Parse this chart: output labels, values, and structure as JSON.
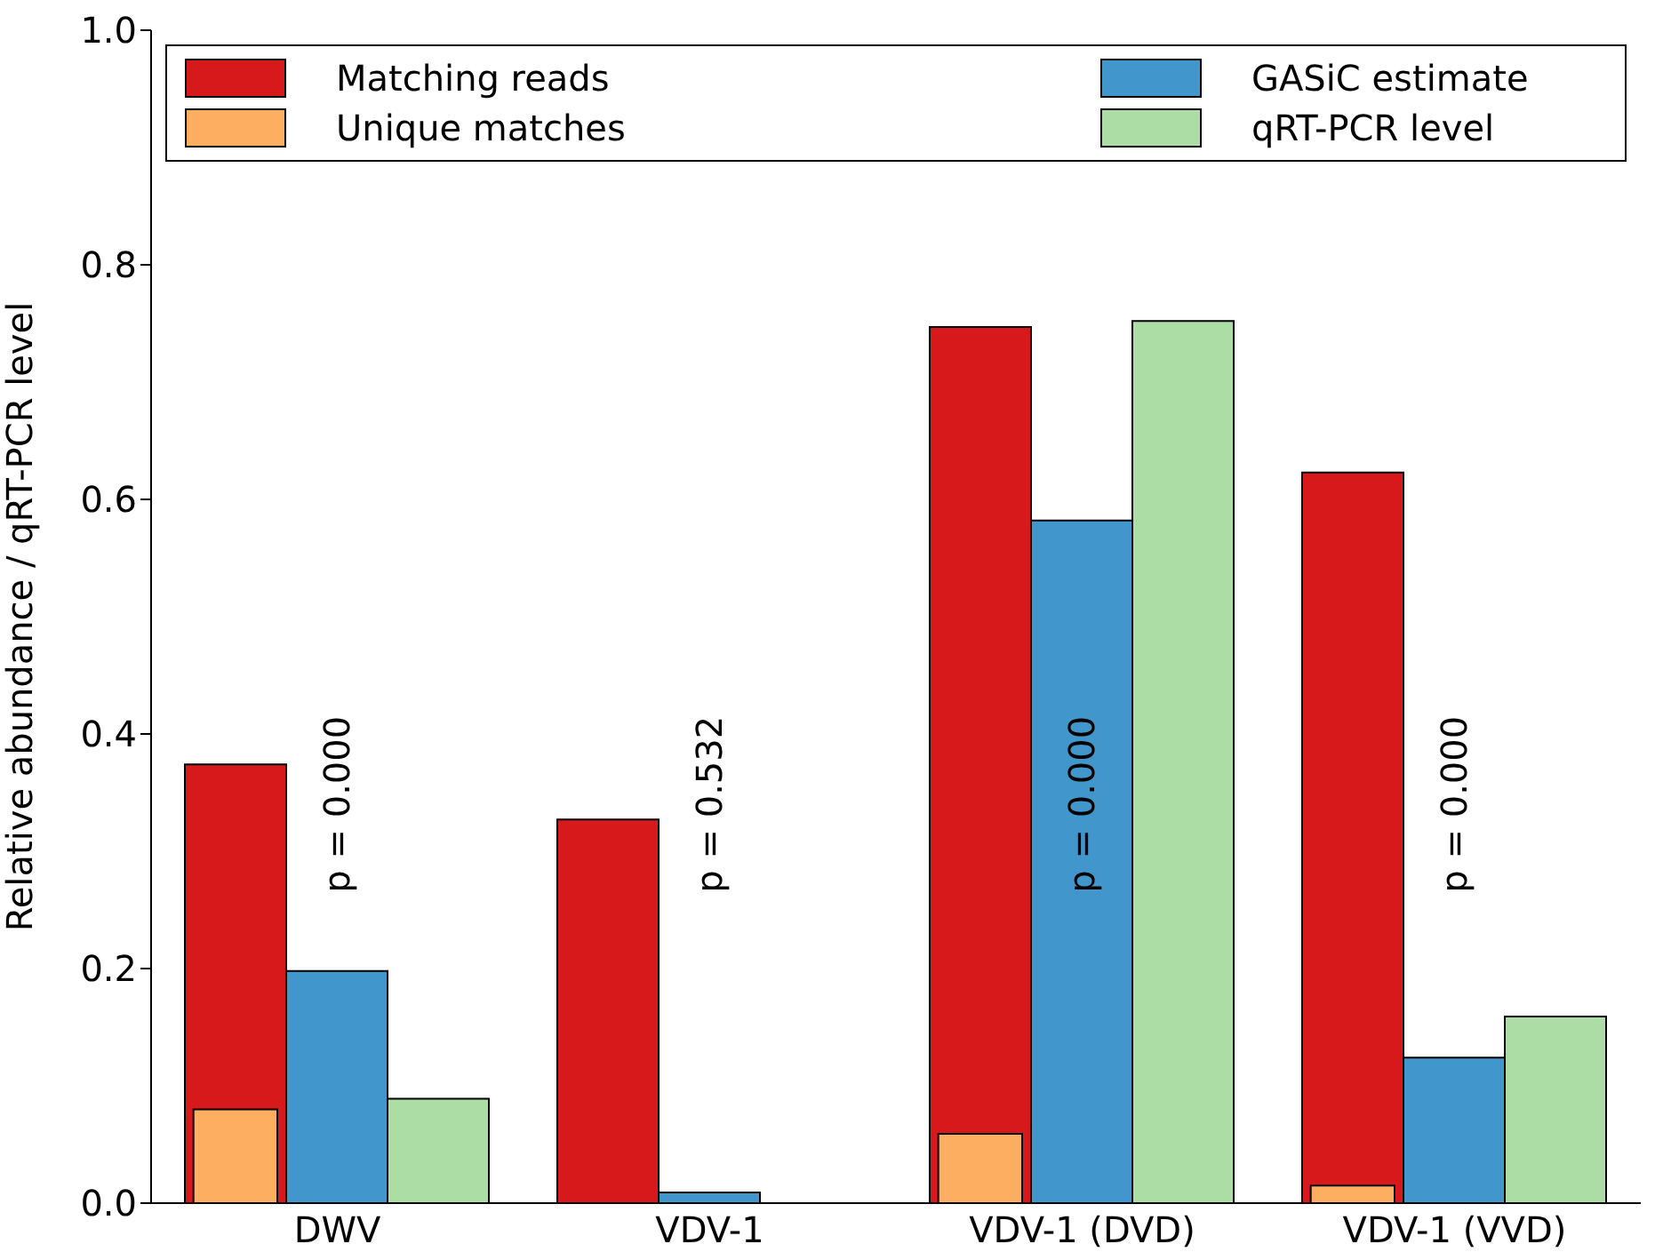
{
  "chart_data": {
    "type": "bar",
    "ylabel": "Relative abundance / qRT-PCR level",
    "categories": [
      "DWV",
      "VDV-1",
      "VDV-1 (DVD)",
      "VDV-1 (VVD)"
    ],
    "series": [
      {
        "name": "Matching reads",
        "color": "#d7191c",
        "values": [
          0.374,
          0.327,
          0.747,
          0.623
        ]
      },
      {
        "name": "Unique matches",
        "color": "#fdae61",
        "values": [
          0.08,
          0,
          0.059,
          0.015
        ]
      },
      {
        "name": "GASiC estimate",
        "color": "#4196cc",
        "values": [
          0.198,
          0.009,
          0.582,
          0.124
        ]
      },
      {
        "name": "qRT-PCR level",
        "color": "#abdda4",
        "values": [
          0.089,
          0,
          0.752,
          0.159
        ]
      }
    ],
    "ylim": [
      0,
      1
    ],
    "yticks": [
      {
        "value": 0,
        "label": "0.0"
      },
      {
        "value": 0.2,
        "label": "0.2"
      },
      {
        "value": 0.4,
        "label": "0.4"
      },
      {
        "value": 0.6,
        "label": "0.6"
      },
      {
        "value": 0.8,
        "label": "0.8"
      },
      {
        "value": 1,
        "label": "1.0"
      }
    ],
    "annotations": [
      "p = 0.000",
      "p = 0.532",
      "p = 0.000",
      "p = 0.000"
    ],
    "grid": false,
    "legend": "top"
  }
}
